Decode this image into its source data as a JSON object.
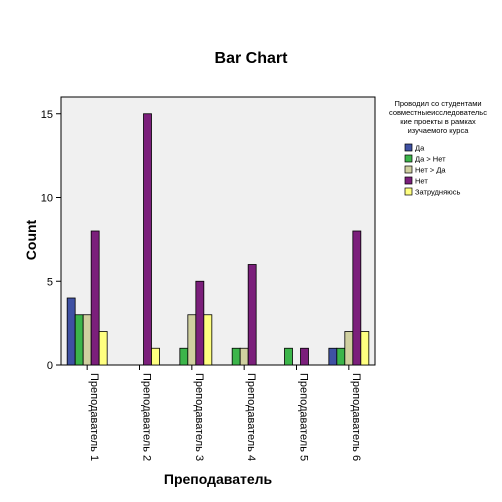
{
  "chart_data": {
    "type": "bar",
    "title": "Bar Chart",
    "xlabel": "Преподаватель",
    "ylabel": "Count",
    "ylim": [
      0,
      16
    ],
    "yticks": [
      0,
      5,
      10,
      15
    ],
    "grid": false,
    "legend_position": "right",
    "legend_title": "Проводил со студентами совместныеисследовательс кие проекты в рамках изучаемого курса",
    "legend_title_lines": [
      "Проводил со студентами",
      "совместныеисследовательс",
      "кие проекты в рамках",
      "изучаемого курса"
    ],
    "categories": [
      "Преподаватель 1",
      "Преподаватель 2",
      "Преподаватель 3",
      "Преподаватель 4",
      "Преподаватель 5",
      "Преподаватель 6"
    ],
    "series": [
      {
        "name": "Да",
        "color": "#3f51a3",
        "values": [
          4,
          0,
          0,
          0,
          0,
          1
        ]
      },
      {
        "name": "Да > Нет",
        "color": "#3cb54a",
        "values": [
          3,
          0,
          1,
          1,
          1,
          1
        ]
      },
      {
        "name": "Нет > Да",
        "color": "#d0d0a0",
        "values": [
          3,
          0,
          3,
          1,
          0,
          2
        ]
      },
      {
        "name": "Нет",
        "color": "#7b1f7b",
        "values": [
          8,
          15,
          5,
          6,
          1,
          8
        ]
      },
      {
        "name": "Затрудняюсь",
        "color": "#ffff80",
        "values": [
          2,
          1,
          3,
          0,
          0,
          2
        ]
      }
    ]
  }
}
